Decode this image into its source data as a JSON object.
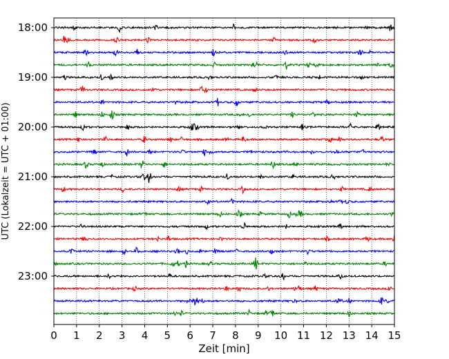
{
  "chart_data": {
    "type": "line",
    "title": "",
    "xlabel": "Zeit  [min]",
    "ylabel": "UTC (Lokalzeit = UTC + 01:00)",
    "xlim": [
      0,
      15
    ],
    "x_ticks": [
      0,
      1,
      2,
      3,
      4,
      5,
      6,
      7,
      8,
      9,
      10,
      11,
      12,
      13,
      14,
      15
    ],
    "x_tick_labels": [
      "0",
      "1",
      "2",
      "3",
      "4",
      "5",
      "6",
      "7",
      "8",
      "9",
      "10",
      "11",
      "12",
      "13",
      "14",
      "15"
    ],
    "y_tick_labels": [
      "18:00",
      "19:00",
      "20:00",
      "21:00",
      "22:00",
      "23:00"
    ],
    "grid": "vertical-dotted",
    "colors": {
      "black": "#000000",
      "red": "#ff0000",
      "blue": "#0000ff",
      "green": "#008000"
    },
    "series": [
      {
        "start": "18:00",
        "color": "black"
      },
      {
        "start": "18:15",
        "color": "red"
      },
      {
        "start": "18:30",
        "color": "blue"
      },
      {
        "start": "18:45",
        "color": "green"
      },
      {
        "start": "19:00",
        "color": "black"
      },
      {
        "start": "19:15",
        "color": "red"
      },
      {
        "start": "19:30",
        "color": "blue"
      },
      {
        "start": "19:45",
        "color": "green"
      },
      {
        "start": "20:00",
        "color": "black"
      },
      {
        "start": "20:15",
        "color": "red"
      },
      {
        "start": "20:30",
        "color": "blue"
      },
      {
        "start": "20:45",
        "color": "green"
      },
      {
        "start": "21:00",
        "color": "black"
      },
      {
        "start": "21:15",
        "color": "red"
      },
      {
        "start": "21:30",
        "color": "blue"
      },
      {
        "start": "21:45",
        "color": "green"
      },
      {
        "start": "22:00",
        "color": "black"
      },
      {
        "start": "22:15",
        "color": "red"
      },
      {
        "start": "22:30",
        "color": "blue"
      },
      {
        "start": "22:45",
        "color": "green"
      },
      {
        "start": "23:00",
        "color": "black"
      },
      {
        "start": "23:15",
        "color": "red"
      },
      {
        "start": "23:30",
        "color": "blue"
      },
      {
        "start": "23:45",
        "color": "green"
      }
    ]
  }
}
